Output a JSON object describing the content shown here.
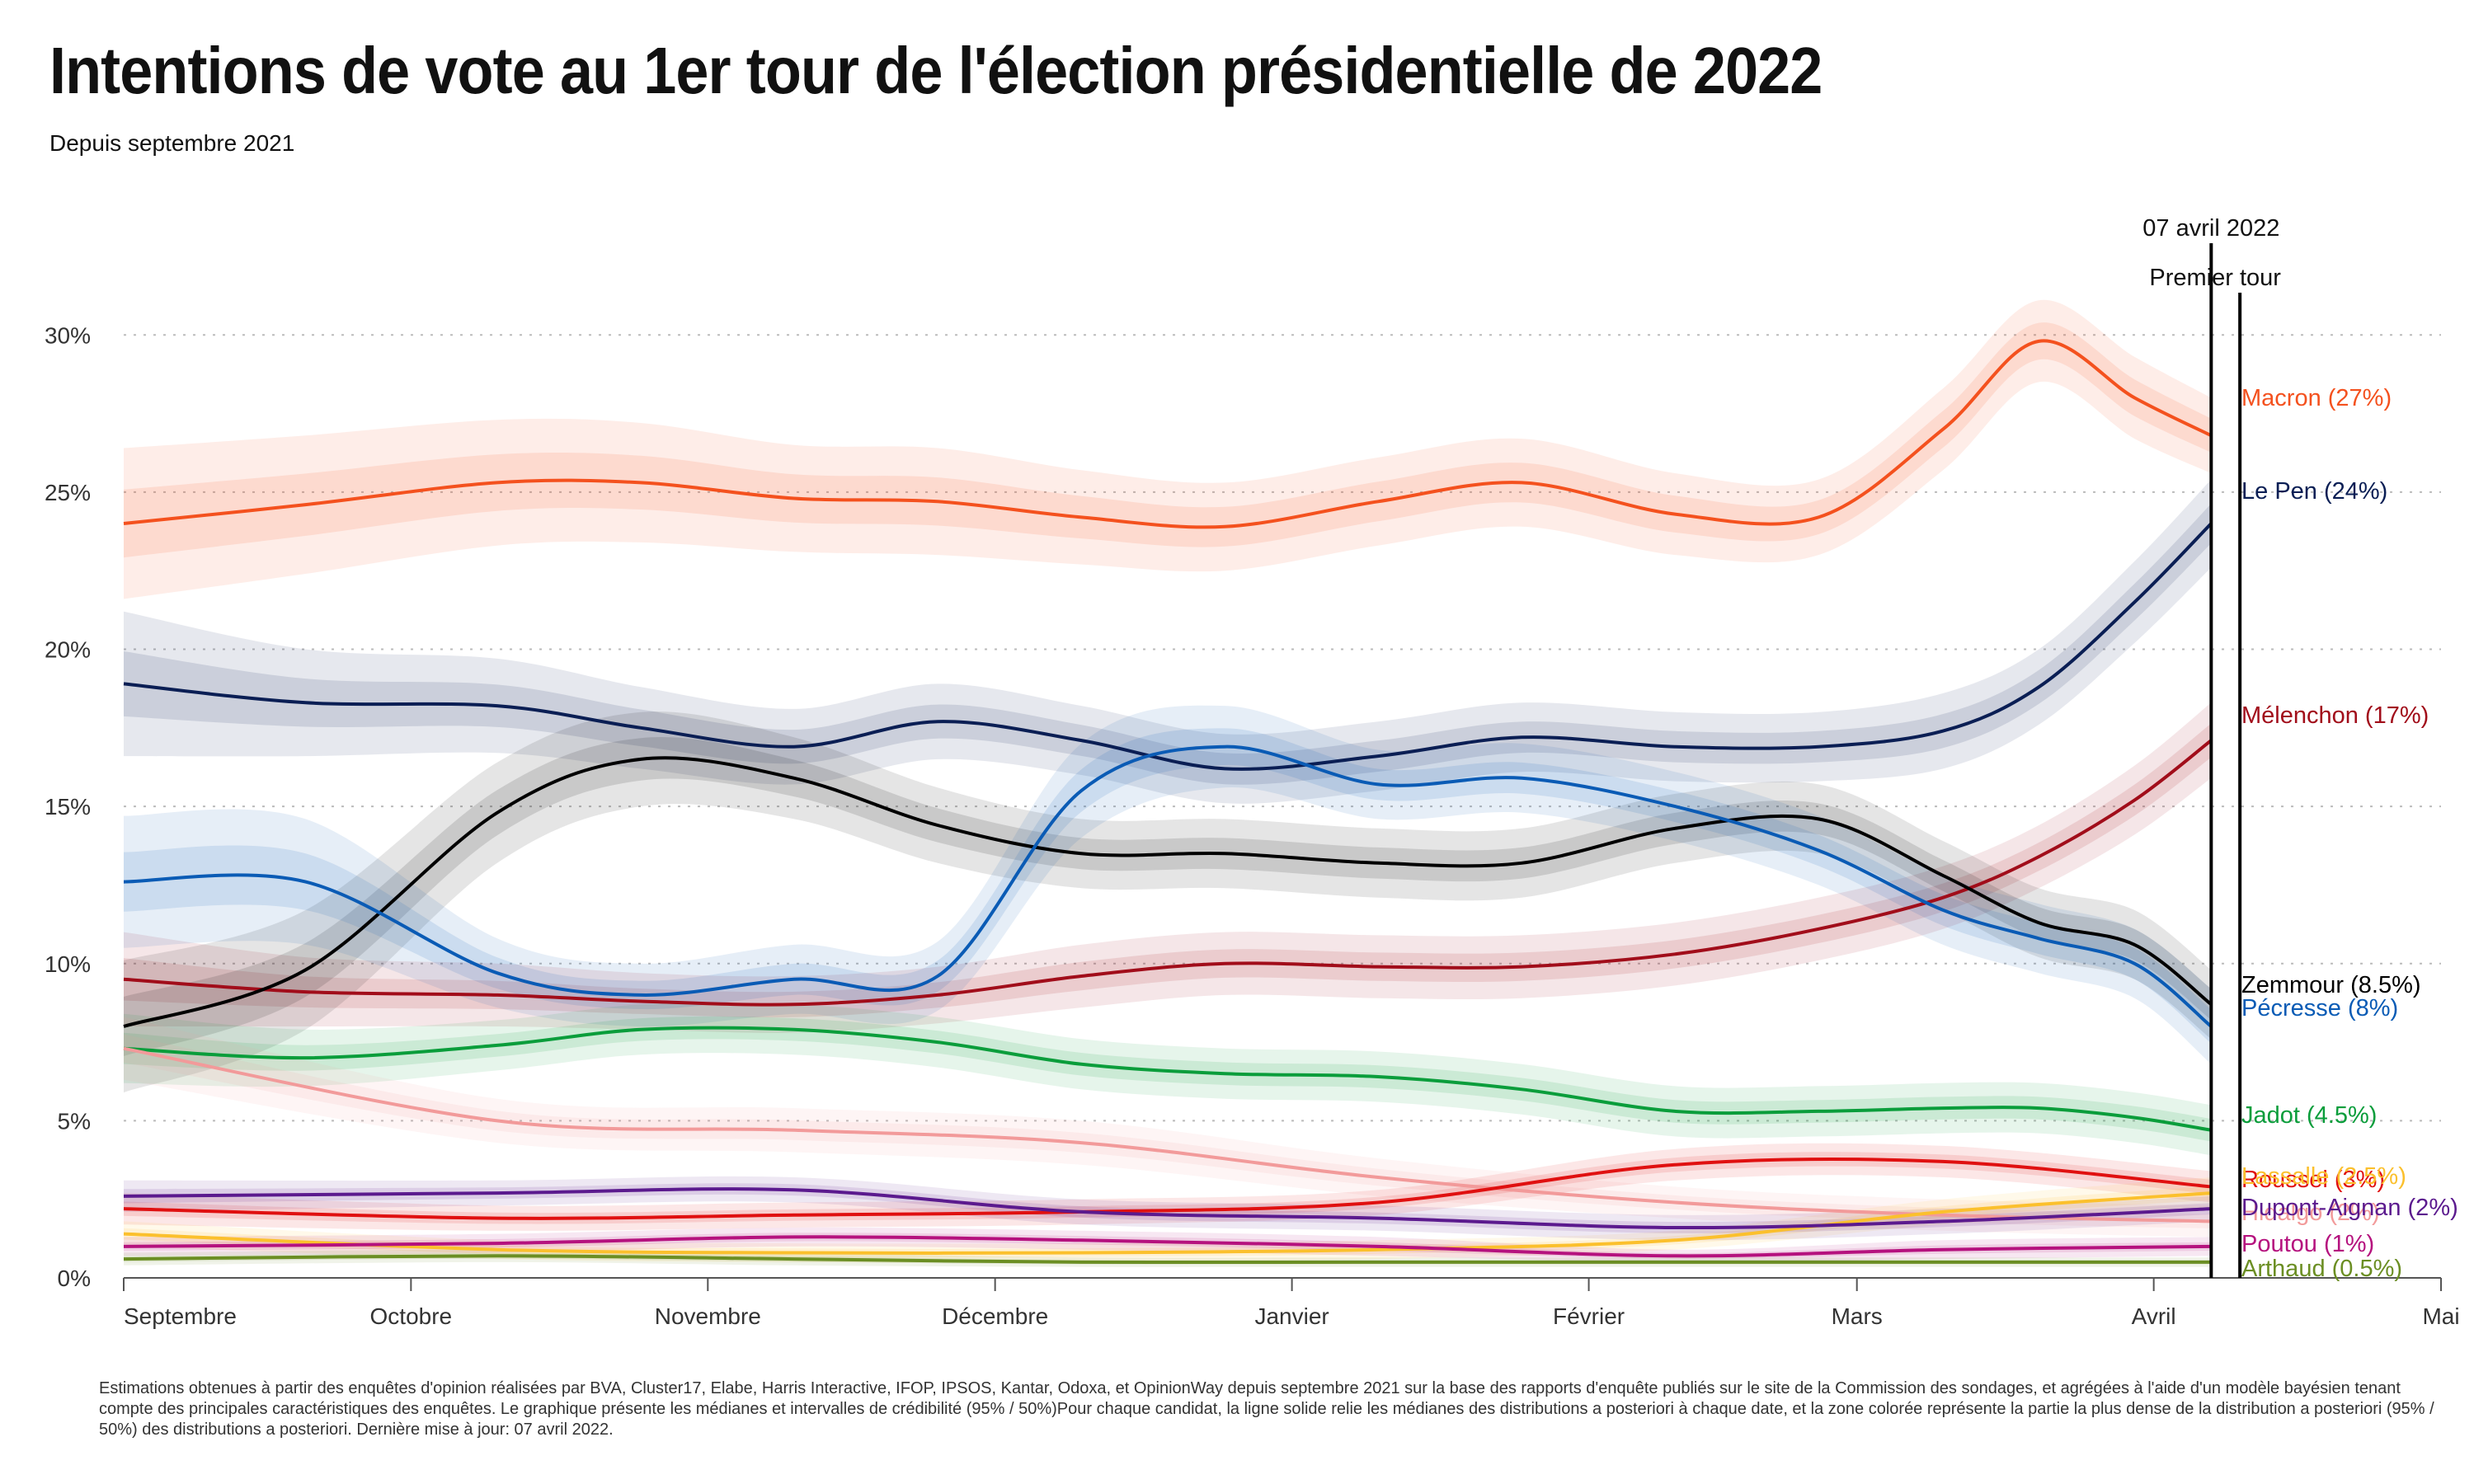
{
  "header": {
    "title": "Intentions de vote au 1er tour de l'élection présidentielle de 2022",
    "subtitle": "Depuis septembre 2021"
  },
  "footer": {
    "note": "Estimations obtenues à partir des enquêtes d'opinion réalisées par BVA, Cluster17, Elabe, Harris Interactive, IFOP, IPSOS, Kantar, Odoxa, et OpinionWay depuis septembre 2021 sur la base des rapports d'enquête publiés sur le site de la Commission des sondages, et agrégées à l'aide d'un modèle bayésien tenant compte des principales caractéristiques des enquêtes. Le graphique présente les médianes et intervalles de crédibilité (95% / 50%)Pour chaque candidat, la ligne solide relie les médianes des distributions a posteriori à chaque date, et la zone colorée représente la partie la plus dense de la distribution a posteriori (95% / 50%) des distributions a posteriori. Dernière mise à jour: 07 avril 2022."
  },
  "chart_data": {
    "type": "line",
    "title": "Intentions de vote au 1er tour de l'élection présidentielle de 2022",
    "subtitle": "Depuis septembre 2021",
    "x_ticks": [
      "Septembre",
      "Octobre",
      "Novembre",
      "Décembre",
      "Janvier",
      "Février",
      "Mars",
      "Avril",
      "Mai"
    ],
    "y_ticks": [
      "0%",
      "5%",
      "10%",
      "15%",
      "20%",
      "25%",
      "30%"
    ],
    "ylim": [
      0,
      32
    ],
    "xlim": [
      "2021-09-01",
      "2022-05-01"
    ],
    "grid": "horizontal dotted",
    "annotations": {
      "last_update": "07 avril 2022",
      "first_round": "Premier tour"
    },
    "series": [
      {
        "name": "Macron (27%)",
        "color": "#f4511e",
        "x": [
          "2021-09-01",
          "2021-09-20",
          "2021-10-10",
          "2021-10-25",
          "2021-11-10",
          "2021-11-25",
          "2021-12-10",
          "2021-12-25",
          "2022-01-10",
          "2022-01-25",
          "2022-02-10",
          "2022-02-25",
          "2022-03-10",
          "2022-03-20",
          "2022-03-30",
          "2022-04-07"
        ],
        "y": [
          24.0,
          24.6,
          25.3,
          25.3,
          24.8,
          24.7,
          24.2,
          23.9,
          24.7,
          25.3,
          24.3,
          24.2,
          27.0,
          29.8,
          28.0,
          26.8
        ],
        "lo": [
          21.6,
          22.4,
          23.3,
          23.4,
          23.1,
          23.0,
          22.7,
          22.5,
          23.3,
          23.9,
          23.0,
          23.0,
          25.7,
          28.5,
          26.7,
          25.6
        ],
        "hi": [
          26.4,
          26.8,
          27.3,
          27.2,
          26.5,
          26.4,
          25.7,
          25.3,
          26.1,
          26.7,
          25.6,
          25.4,
          28.3,
          31.1,
          29.3,
          28.0
        ]
      },
      {
        "name": "Le Pen (24%)",
        "color": "#0a1e54",
        "x": [
          "2021-09-01",
          "2021-09-20",
          "2021-10-10",
          "2021-10-25",
          "2021-11-10",
          "2021-11-25",
          "2021-12-10",
          "2021-12-25",
          "2022-01-10",
          "2022-01-25",
          "2022-02-10",
          "2022-02-25",
          "2022-03-10",
          "2022-03-20",
          "2022-03-30",
          "2022-04-07"
        ],
        "y": [
          18.9,
          18.3,
          18.2,
          17.5,
          16.9,
          17.7,
          17.1,
          16.2,
          16.6,
          17.2,
          16.9,
          16.9,
          17.4,
          18.8,
          21.5,
          24.0
        ],
        "lo": [
          16.6,
          16.6,
          16.7,
          16.2,
          15.7,
          16.5,
          16.0,
          15.1,
          15.5,
          16.1,
          15.8,
          15.8,
          16.2,
          17.6,
          20.2,
          22.6
        ],
        "hi": [
          21.2,
          20.0,
          19.7,
          18.8,
          18.1,
          18.9,
          18.2,
          17.3,
          17.7,
          18.3,
          18.0,
          18.0,
          18.6,
          20.0,
          22.8,
          25.4
        ]
      },
      {
        "name": "Mélenchon (17%)",
        "color": "#a10d1a",
        "x": [
          "2021-09-01",
          "2021-09-20",
          "2021-10-10",
          "2021-10-25",
          "2021-11-10",
          "2021-11-25",
          "2021-12-10",
          "2021-12-25",
          "2022-01-10",
          "2022-01-25",
          "2022-02-10",
          "2022-02-25",
          "2022-03-10",
          "2022-03-20",
          "2022-03-30",
          "2022-04-07"
        ],
        "y": [
          9.5,
          9.1,
          9.0,
          8.8,
          8.7,
          9.0,
          9.6,
          10.0,
          9.9,
          9.9,
          10.3,
          11.1,
          12.1,
          13.4,
          15.2,
          17.1
        ],
        "lo": [
          8.0,
          8.0,
          8.0,
          7.9,
          7.8,
          8.1,
          8.6,
          9.0,
          8.9,
          8.9,
          9.3,
          10.1,
          11.1,
          12.4,
          14.1,
          15.9
        ],
        "hi": [
          11.0,
          10.2,
          10.0,
          9.7,
          9.6,
          9.9,
          10.6,
          11.0,
          10.9,
          10.9,
          11.3,
          12.1,
          13.1,
          14.4,
          16.3,
          18.3
        ]
      },
      {
        "name": "Zemmour (8.5%)",
        "color": "#000000",
        "x": [
          "2021-09-01",
          "2021-09-20",
          "2021-10-10",
          "2021-10-25",
          "2021-11-10",
          "2021-11-25",
          "2021-12-10",
          "2021-12-25",
          "2022-01-10",
          "2022-01-25",
          "2022-02-10",
          "2022-02-25",
          "2022-03-10",
          "2022-03-20",
          "2022-03-30",
          "2022-04-07"
        ],
        "y": [
          8.0,
          9.8,
          14.8,
          16.5,
          15.9,
          14.4,
          13.5,
          13.5,
          13.2,
          13.2,
          14.3,
          14.6,
          12.8,
          11.3,
          10.6,
          8.7
        ],
        "lo": [
          5.9,
          7.9,
          13.2,
          15.0,
          14.6,
          13.2,
          12.4,
          12.4,
          12.1,
          12.1,
          13.2,
          13.5,
          11.7,
          10.2,
          9.5,
          7.6
        ],
        "hi": [
          10.1,
          11.7,
          16.4,
          18.0,
          17.2,
          15.6,
          14.6,
          14.6,
          14.3,
          14.3,
          15.4,
          15.7,
          13.9,
          12.4,
          11.7,
          9.8
        ]
      },
      {
        "name": "Pécresse (8%)",
        "color": "#0a5bb5",
        "x": [
          "2021-09-01",
          "2021-09-20",
          "2021-10-10",
          "2021-10-25",
          "2021-11-10",
          "2021-11-25",
          "2021-12-10",
          "2021-12-25",
          "2022-01-10",
          "2022-01-25",
          "2022-02-10",
          "2022-02-25",
          "2022-03-10",
          "2022-03-20",
          "2022-03-30",
          "2022-04-07"
        ],
        "y": [
          12.6,
          12.6,
          9.7,
          9.0,
          9.5,
          9.6,
          15.5,
          16.9,
          15.7,
          15.9,
          15.0,
          13.6,
          11.7,
          10.8,
          10.0,
          8.0
        ],
        "lo": [
          10.5,
          10.6,
          8.6,
          8.0,
          8.4,
          8.5,
          14.0,
          15.6,
          14.6,
          14.8,
          13.9,
          12.5,
          10.6,
          9.7,
          8.9,
          6.8
        ],
        "hi": [
          14.7,
          14.6,
          10.8,
          10.0,
          10.6,
          10.7,
          17.0,
          18.2,
          16.8,
          17.0,
          16.1,
          14.7,
          12.8,
          11.9,
          11.1,
          9.2
        ]
      },
      {
        "name": "Jadot (4.5%)",
        "color": "#0a9d3b",
        "x": [
          "2021-09-01",
          "2021-09-20",
          "2021-10-10",
          "2021-10-25",
          "2021-11-10",
          "2021-11-25",
          "2021-12-10",
          "2021-12-25",
          "2022-01-10",
          "2022-01-25",
          "2022-02-10",
          "2022-02-25",
          "2022-03-10",
          "2022-03-20",
          "2022-03-30",
          "2022-04-07"
        ],
        "y": [
          7.3,
          7.0,
          7.4,
          7.9,
          7.9,
          7.5,
          6.8,
          6.5,
          6.4,
          6.0,
          5.3,
          5.3,
          5.4,
          5.4,
          5.1,
          4.7
        ],
        "lo": [
          6.2,
          6.1,
          6.6,
          7.1,
          7.1,
          6.7,
          6.0,
          5.7,
          5.6,
          5.2,
          4.5,
          4.5,
          4.6,
          4.6,
          4.3,
          3.9
        ],
        "hi": [
          8.4,
          7.9,
          8.2,
          8.7,
          8.7,
          8.3,
          7.6,
          7.3,
          7.2,
          6.8,
          6.1,
          6.1,
          6.2,
          6.2,
          5.9,
          5.5
        ]
      },
      {
        "name": "Hidalgo (2%)",
        "color": "#f29a9a",
        "x": [
          "2021-09-01",
          "2021-10-10",
          "2021-11-10",
          "2021-12-10",
          "2022-01-10",
          "2022-02-10",
          "2022-03-10",
          "2022-04-07"
        ],
        "y": [
          7.3,
          5.0,
          4.7,
          4.3,
          3.2,
          2.4,
          2.0,
          1.8
        ],
        "lo": [
          6.3,
          4.3,
          4.0,
          3.6,
          2.6,
          1.9,
          1.5,
          1.3
        ],
        "hi": [
          8.3,
          5.7,
          5.4,
          5.0,
          3.8,
          2.9,
          2.5,
          2.3
        ]
      },
      {
        "name": "Roussel (3%)",
        "color": "#e01010",
        "x": [
          "2021-09-01",
          "2021-10-10",
          "2021-11-10",
          "2021-12-10",
          "2022-01-10",
          "2022-02-10",
          "2022-03-10",
          "2022-04-07"
        ],
        "y": [
          2.2,
          1.9,
          2.0,
          2.1,
          2.4,
          3.6,
          3.7,
          2.9
        ],
        "lo": [
          1.7,
          1.5,
          1.6,
          1.7,
          2.0,
          3.1,
          3.2,
          2.4
        ],
        "hi": [
          2.7,
          2.3,
          2.4,
          2.5,
          2.8,
          4.1,
          4.2,
          3.4
        ]
      },
      {
        "name": "Lassalle (2.5%)",
        "color": "#fbc02d",
        "x": [
          "2021-09-01",
          "2021-10-10",
          "2021-11-10",
          "2021-12-10",
          "2022-01-10",
          "2022-02-10",
          "2022-03-10",
          "2022-04-07"
        ],
        "y": [
          1.4,
          0.9,
          0.8,
          0.8,
          0.9,
          1.2,
          2.1,
          2.7
        ],
        "lo": [
          1.0,
          0.6,
          0.5,
          0.5,
          0.6,
          0.9,
          1.7,
          2.2
        ],
        "hi": [
          1.8,
          1.2,
          1.1,
          1.1,
          1.2,
          1.5,
          2.5,
          3.2
        ]
      },
      {
        "name": "Dupont-Aignan (2%)",
        "color": "#5b1a8e",
        "x": [
          "2021-09-01",
          "2021-10-10",
          "2021-11-10",
          "2021-12-10",
          "2022-01-10",
          "2022-02-10",
          "2022-03-10",
          "2022-04-07"
        ],
        "y": [
          2.6,
          2.7,
          2.8,
          2.1,
          1.9,
          1.6,
          1.8,
          2.2
        ],
        "lo": [
          2.1,
          2.3,
          2.4,
          1.7,
          1.5,
          1.2,
          1.4,
          1.8
        ],
        "hi": [
          3.1,
          3.1,
          3.2,
          2.5,
          2.3,
          2.0,
          2.2,
          2.6
        ]
      },
      {
        "name": "Poutou (1%)",
        "color": "#b5127e",
        "x": [
          "2021-09-01",
          "2021-10-10",
          "2021-11-10",
          "2021-12-10",
          "2022-01-10",
          "2022-02-10",
          "2022-03-10",
          "2022-04-07"
        ],
        "y": [
          1.0,
          1.1,
          1.3,
          1.2,
          1.0,
          0.7,
          0.9,
          1.0
        ],
        "lo": [
          0.7,
          0.8,
          1.0,
          0.9,
          0.7,
          0.5,
          0.6,
          0.7
        ],
        "hi": [
          1.3,
          1.4,
          1.6,
          1.5,
          1.3,
          0.9,
          1.2,
          1.3
        ]
      },
      {
        "name": "Arthaud (0.5%)",
        "color": "#6b8e23",
        "x": [
          "2021-09-01",
          "2021-10-10",
          "2021-11-10",
          "2021-12-10",
          "2022-01-10",
          "2022-02-10",
          "2022-03-10",
          "2022-04-07"
        ],
        "y": [
          0.6,
          0.7,
          0.6,
          0.5,
          0.5,
          0.5,
          0.5,
          0.5
        ],
        "lo": [
          0.4,
          0.5,
          0.4,
          0.35,
          0.35,
          0.35,
          0.35,
          0.35
        ],
        "hi": [
          0.8,
          0.9,
          0.8,
          0.65,
          0.65,
          0.65,
          0.65,
          0.65
        ]
      }
    ]
  }
}
